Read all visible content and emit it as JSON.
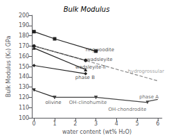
{
  "chart_data": {
    "type": "line",
    "title": "Bulk Modulus",
    "x_label": "water content (wt% H₂O)",
    "y_label": "Bulk Modulus (K₀) GPa",
    "xlim": [
      -0.1,
      6.2
    ],
    "ylim": [
      100,
      200
    ],
    "xticks": [
      0,
      1,
      2,
      3,
      4,
      5,
      6
    ],
    "yticks": [
      100,
      110,
      120,
      130,
      140,
      150,
      160,
      170,
      180,
      190,
      200
    ],
    "grid": false,
    "series": [
      {
        "x": [
          0,
          1,
          3.0
        ],
        "values": [
          184,
          177,
          165
        ],
        "marker": "square",
        "color": "#222222",
        "line_style": "solid"
      },
      {
        "x": [
          0,
          2.5
        ],
        "values": [
          170,
          156
        ],
        "marker": "circle",
        "color": "#222222",
        "line_style": "solid"
      },
      {
        "x": [
          0,
          2.5
        ],
        "values": [
          168,
          147
        ],
        "marker": "triangle",
        "color": "#222222",
        "line_style": "solid"
      },
      {
        "x": [
          0,
          2.5
        ],
        "values": [
          151,
          143
        ],
        "marker": "diamond",
        "color": "#222222",
        "line_style": "solid"
      },
      {
        "x": [
          0,
          6
        ],
        "values": [
          170,
          136
        ],
        "marker": "none",
        "color": "#888888",
        "line_style": "dashed"
      },
      {
        "x": [
          0,
          1.0
        ],
        "values": [
          127,
          120
        ],
        "marker": "triangle-down",
        "color": "#222222",
        "line_style": "solid"
      },
      {
        "x": [
          1.0,
          3.0
        ],
        "values": [
          120,
          120
        ],
        "marker": "triangle-down",
        "color": "#444444",
        "line_style": "solid"
      },
      {
        "x": [
          3.0,
          5.5
        ],
        "values": [
          120,
          115
        ],
        "marker": "triangle-down",
        "color": "#444444",
        "line_style": "solid"
      },
      {
        "x": [
          5.5,
          6.0
        ],
        "values": [
          116,
          118
        ],
        "marker": "none",
        "color": "#444444",
        "line_style": "solid"
      }
    ],
    "annotations": [
      {
        "text": "ringwoodite",
        "x": 2.5,
        "y": 166,
        "color": "#222222"
      },
      {
        "text": "wadsleyite",
        "x": 2.55,
        "y": 157,
        "color": "#222222"
      },
      {
        "text": "wadsleyite-II",
        "x": 2.0,
        "y": 149,
        "color": "#222222"
      },
      {
        "text": "phase B",
        "x": 2.0,
        "y": 139,
        "color": "#222222"
      },
      {
        "text": "hydrogrossular",
        "x": 4.55,
        "y": 145,
        "color": "#888888"
      },
      {
        "text": "olivine",
        "x": 0.55,
        "y": 115,
        "color": "#222222"
      },
      {
        "text": "OH-clinohumite",
        "x": 1.7,
        "y": 115,
        "color": "#444444"
      },
      {
        "text": "OH-chondrodite",
        "x": 3.6,
        "y": 108,
        "color": "#444444"
      },
      {
        "text": "phase A",
        "x": 5.1,
        "y": 120,
        "color": "#444444"
      }
    ]
  }
}
